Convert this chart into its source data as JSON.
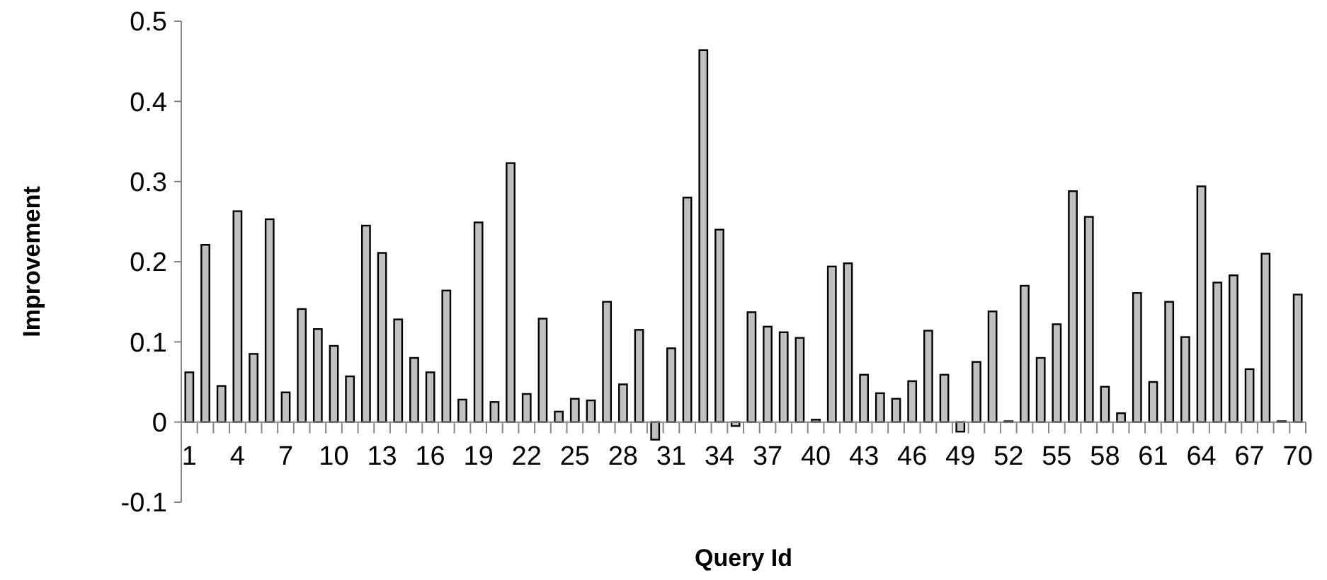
{
  "chart_data": {
    "type": "bar",
    "xlabel": "Query Id",
    "ylabel": "Improvement",
    "categories": [
      "1",
      null,
      null,
      "4",
      null,
      null,
      "7",
      null,
      null,
      "10",
      null,
      null,
      "13",
      null,
      null,
      "16",
      null,
      null,
      "19",
      null,
      null,
      "22",
      null,
      null,
      "25",
      null,
      null,
      "28",
      null,
      null,
      "31",
      null,
      null,
      "34",
      null,
      null,
      "37",
      null,
      null,
      "40",
      null,
      null,
      "43",
      null,
      null,
      "46",
      null,
      null,
      "49",
      null,
      null,
      "52",
      null,
      null,
      "55",
      null,
      null,
      "58",
      null,
      null,
      "61",
      null,
      null,
      "64",
      null,
      null,
      "67",
      null,
      null,
      "70"
    ],
    "values": [
      0.062,
      0.221,
      0.045,
      0.263,
      0.085,
      0.253,
      0.037,
      0.141,
      0.116,
      0.095,
      0.057,
      0.245,
      0.211,
      0.128,
      0.08,
      0.062,
      0.164,
      0.028,
      0.249,
      0.025,
      0.323,
      0.035,
      0.129,
      0.013,
      0.029,
      0.027,
      0.15,
      0.047,
      0.115,
      -0.022,
      0.092,
      0.28,
      0.464,
      0.24,
      -0.005,
      0.137,
      0.119,
      0.112,
      0.105,
      0.003,
      0.194,
      0.198,
      0.059,
      0.036,
      0.029,
      0.051,
      0.114,
      0.059,
      -0.012,
      0.075,
      0.138,
      0.001,
      0.17,
      0.08,
      0.122,
      0.288,
      0.256,
      0.044,
      0.011,
      0.161,
      0.05,
      0.15,
      0.106,
      0.294,
      0.174,
      0.183,
      0.066,
      0.21,
      0.001,
      0.159
    ],
    "color": "#c0c0c0",
    "ylim": [
      -0.1,
      0.5
    ],
    "yticks": [
      -0.1,
      0,
      0.1,
      0.2,
      0.3,
      0.4,
      0.5
    ],
    "grid": false
  }
}
